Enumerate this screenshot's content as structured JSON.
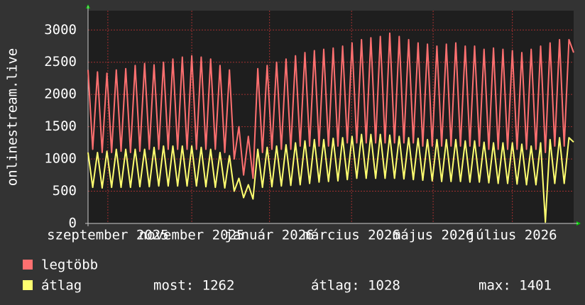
{
  "chart_data": {
    "type": "line",
    "y_label": "onlinestream.live",
    "ylim": [
      0,
      3300
    ],
    "yticks": [
      0,
      500,
      1000,
      1500,
      2000,
      2500,
      3000
    ],
    "xlim": [
      0,
      103
    ],
    "xticks": [
      {
        "value": 4.2,
        "label": "szeptember 2025"
      },
      {
        "value": 22,
        "label": "november 2025"
      },
      {
        "value": 38.5,
        "label": "január 2026"
      },
      {
        "value": 55.9,
        "label": "március 2026"
      },
      {
        "value": 73.2,
        "label": "május 2026"
      },
      {
        "value": 90,
        "label": "július 2026"
      }
    ],
    "grid": true,
    "series": [
      {
        "name": "legtöbb",
        "color": "#ff7070",
        "values": [
          2380,
          1150,
          2350,
          1100,
          2330,
          1100,
          2380,
          1120,
          2400,
          1100,
          2450,
          1120,
          2480,
          1150,
          2460,
          1150,
          2500,
          1150,
          2550,
          1150,
          2580,
          1150,
          2600,
          1150,
          2580,
          1150,
          2550,
          1150,
          2450,
          1100,
          2380,
          1000,
          1500,
          750,
          1350,
          700,
          2400,
          1100,
          2450,
          1150,
          2500,
          1150,
          2550,
          1150,
          2600,
          1200,
          2650,
          1200,
          2680,
          1200,
          2700,
          1200,
          2720,
          1200,
          2750,
          1250,
          2800,
          1250,
          2850,
          1250,
          2880,
          1250,
          2900,
          1250,
          2950,
          1250,
          2900,
          1250,
          2850,
          1250,
          2800,
          1200,
          2780,
          1200,
          2750,
          1200,
          2780,
          1200,
          2800,
          1200,
          2750,
          1200,
          2750,
          1200,
          2700,
          1150,
          2720,
          1150,
          2700,
          1150,
          2680,
          1150,
          2650,
          1150,
          2700,
          1150,
          2750,
          1100,
          2800,
          1200,
          2850,
          1200,
          2850,
          2650
        ]
      },
      {
        "name": "átlag",
        "color": "#ffff70",
        "values": [
          1100,
          560,
          1100,
          550,
          1120,
          560,
          1150,
          560,
          1150,
          560,
          1150,
          570,
          1150,
          570,
          1180,
          580,
          1200,
          580,
          1200,
          580,
          1200,
          580,
          1200,
          580,
          1180,
          570,
          1150,
          560,
          1100,
          550,
          1050,
          500,
          700,
          400,
          600,
          380,
          1150,
          560,
          1180,
          570,
          1200,
          580,
          1220,
          590,
          1250,
          600,
          1280,
          620,
          1300,
          640,
          1300,
          650,
          1320,
          660,
          1330,
          680,
          1350,
          700,
          1380,
          700,
          1380,
          700,
          1380,
          700,
          1370,
          700,
          1350,
          690,
          1330,
          680,
          1320,
          670,
          1300,
          660,
          1300,
          650,
          1300,
          650,
          1300,
          650,
          1280,
          640,
          1280,
          640,
          1260,
          630,
          1250,
          620,
          1250,
          620,
          1250,
          610,
          1230,
          600,
          1200,
          600,
          1250,
          20,
          1300,
          620,
          1330,
          620,
          1330,
          1262
        ]
      }
    ],
    "stats": [
      "most: 1262",
      "átlag: 1028",
      "max: 1401"
    ]
  }
}
